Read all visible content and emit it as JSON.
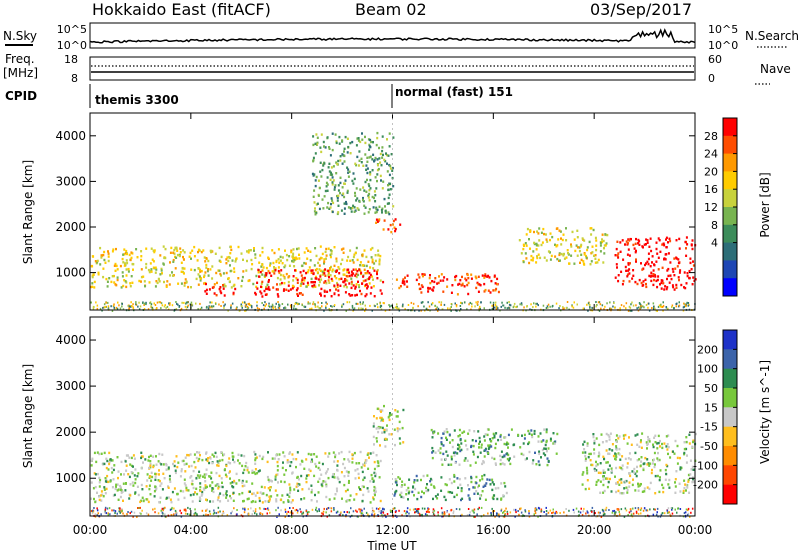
{
  "header": {
    "title": "Hokkaido East (fitACF)",
    "beam": "Beam 02",
    "date": "03/Sep/2017"
  },
  "nsky_panel": {
    "label": "N.Sky",
    "left_ticks": [
      "10^5",
      "10^0"
    ],
    "right_ticks": [
      "10^5",
      "10^0"
    ],
    "right_label": "N.Search"
  },
  "freq_panel": {
    "label_line1": "Freq.",
    "label_line2": "[MHz]",
    "left_ticks": [
      "18",
      "8"
    ],
    "right_ticks": [
      "60",
      "0"
    ],
    "right_label": "Nave"
  },
  "cpid_panel": {
    "label": "CPID",
    "modes": [
      {
        "text": "themis 3300",
        "start_hour": 0
      },
      {
        "text": "normal (fast) 151",
        "start_hour": 12
      }
    ]
  },
  "x_axis": {
    "label": "Time UT",
    "ticks": [
      "00:00",
      "04:00",
      "08:00",
      "12:00",
      "16:00",
      "20:00",
      "00:00"
    ]
  },
  "chart_data": [
    {
      "type": "heatmap",
      "title": "",
      "xlabel": "",
      "ylabel": "Slant Range [km]",
      "x_range_hours": [
        0,
        24
      ],
      "ylim": [
        180,
        4500
      ],
      "y_ticks": [
        1000,
        2000,
        3000,
        4000
      ],
      "colorbar": {
        "label": "Power [dB]",
        "ticks": [
          "28",
          "24",
          "20",
          "16",
          "12",
          "8",
          "4"
        ],
        "colors": [
          "#ff0000",
          "#ff4d00",
          "#ff9900",
          "#ffcc00",
          "#c8d23c",
          "#78b450",
          "#3c8c5a",
          "#2d6e78",
          "#1e46b4",
          "#0000ff"
        ]
      },
      "features": [
        {
          "t0": 0.0,
          "t1": 11.5,
          "r0": 700,
          "r1": 1600,
          "level": 4
        },
        {
          "t0": 4.5,
          "t1": 5.8,
          "r0": 520,
          "r1": 780,
          "level": 0
        },
        {
          "t0": 6.5,
          "t1": 11.6,
          "r0": 500,
          "r1": 1100,
          "level": 0
        },
        {
          "t0": 11.3,
          "t1": 12.3,
          "r0": 1900,
          "r1": 2200,
          "level": 1
        },
        {
          "t0": 12.0,
          "t1": 16.2,
          "r0": 550,
          "r1": 1000,
          "level": 1
        },
        {
          "t0": 20.8,
          "t1": 24.0,
          "r0": 650,
          "r1": 1800,
          "level": 0
        },
        {
          "t0": 17.0,
          "t1": 20.5,
          "r0": 1200,
          "r1": 2000,
          "level": 4
        },
        {
          "t0": 8.8,
          "t1": 12.0,
          "r0": 2300,
          "r1": 4100,
          "level": 6
        }
      ]
    },
    {
      "type": "heatmap",
      "title": "",
      "xlabel": "Time UT",
      "ylabel": "Slant Range [km]",
      "x_range_hours": [
        0,
        24
      ],
      "ylim": [
        180,
        4500
      ],
      "y_ticks": [
        1000,
        2000,
        3000,
        4000
      ],
      "colorbar": {
        "label": "Velocity [m s^-1]",
        "ticks": [
          "200",
          "100",
          "50",
          "15",
          "-15",
          "-50",
          "-100",
          "-200"
        ],
        "colors": [
          "#1e32c8",
          "#3c64aa",
          "#2d8c50",
          "#78c83c",
          "#c8c8c8",
          "#ffbe1e",
          "#ff8c00",
          "#ff4600",
          "#ff0000"
        ]
      },
      "features": [
        {
          "t0": 0.0,
          "t1": 11.5,
          "r0": 500,
          "r1": 1600,
          "level": 4
        },
        {
          "t0": 11.2,
          "t1": 12.4,
          "r0": 1700,
          "r1": 2600,
          "level": 4
        },
        {
          "t0": 12.0,
          "t1": 16.5,
          "r0": 550,
          "r1": 1100,
          "level": 3
        },
        {
          "t0": 13.5,
          "t1": 18.5,
          "r0": 1300,
          "r1": 2100,
          "level": 3
        },
        {
          "t0": 19.5,
          "t1": 24.0,
          "r0": 700,
          "r1": 2000,
          "level": 4
        }
      ]
    }
  ]
}
